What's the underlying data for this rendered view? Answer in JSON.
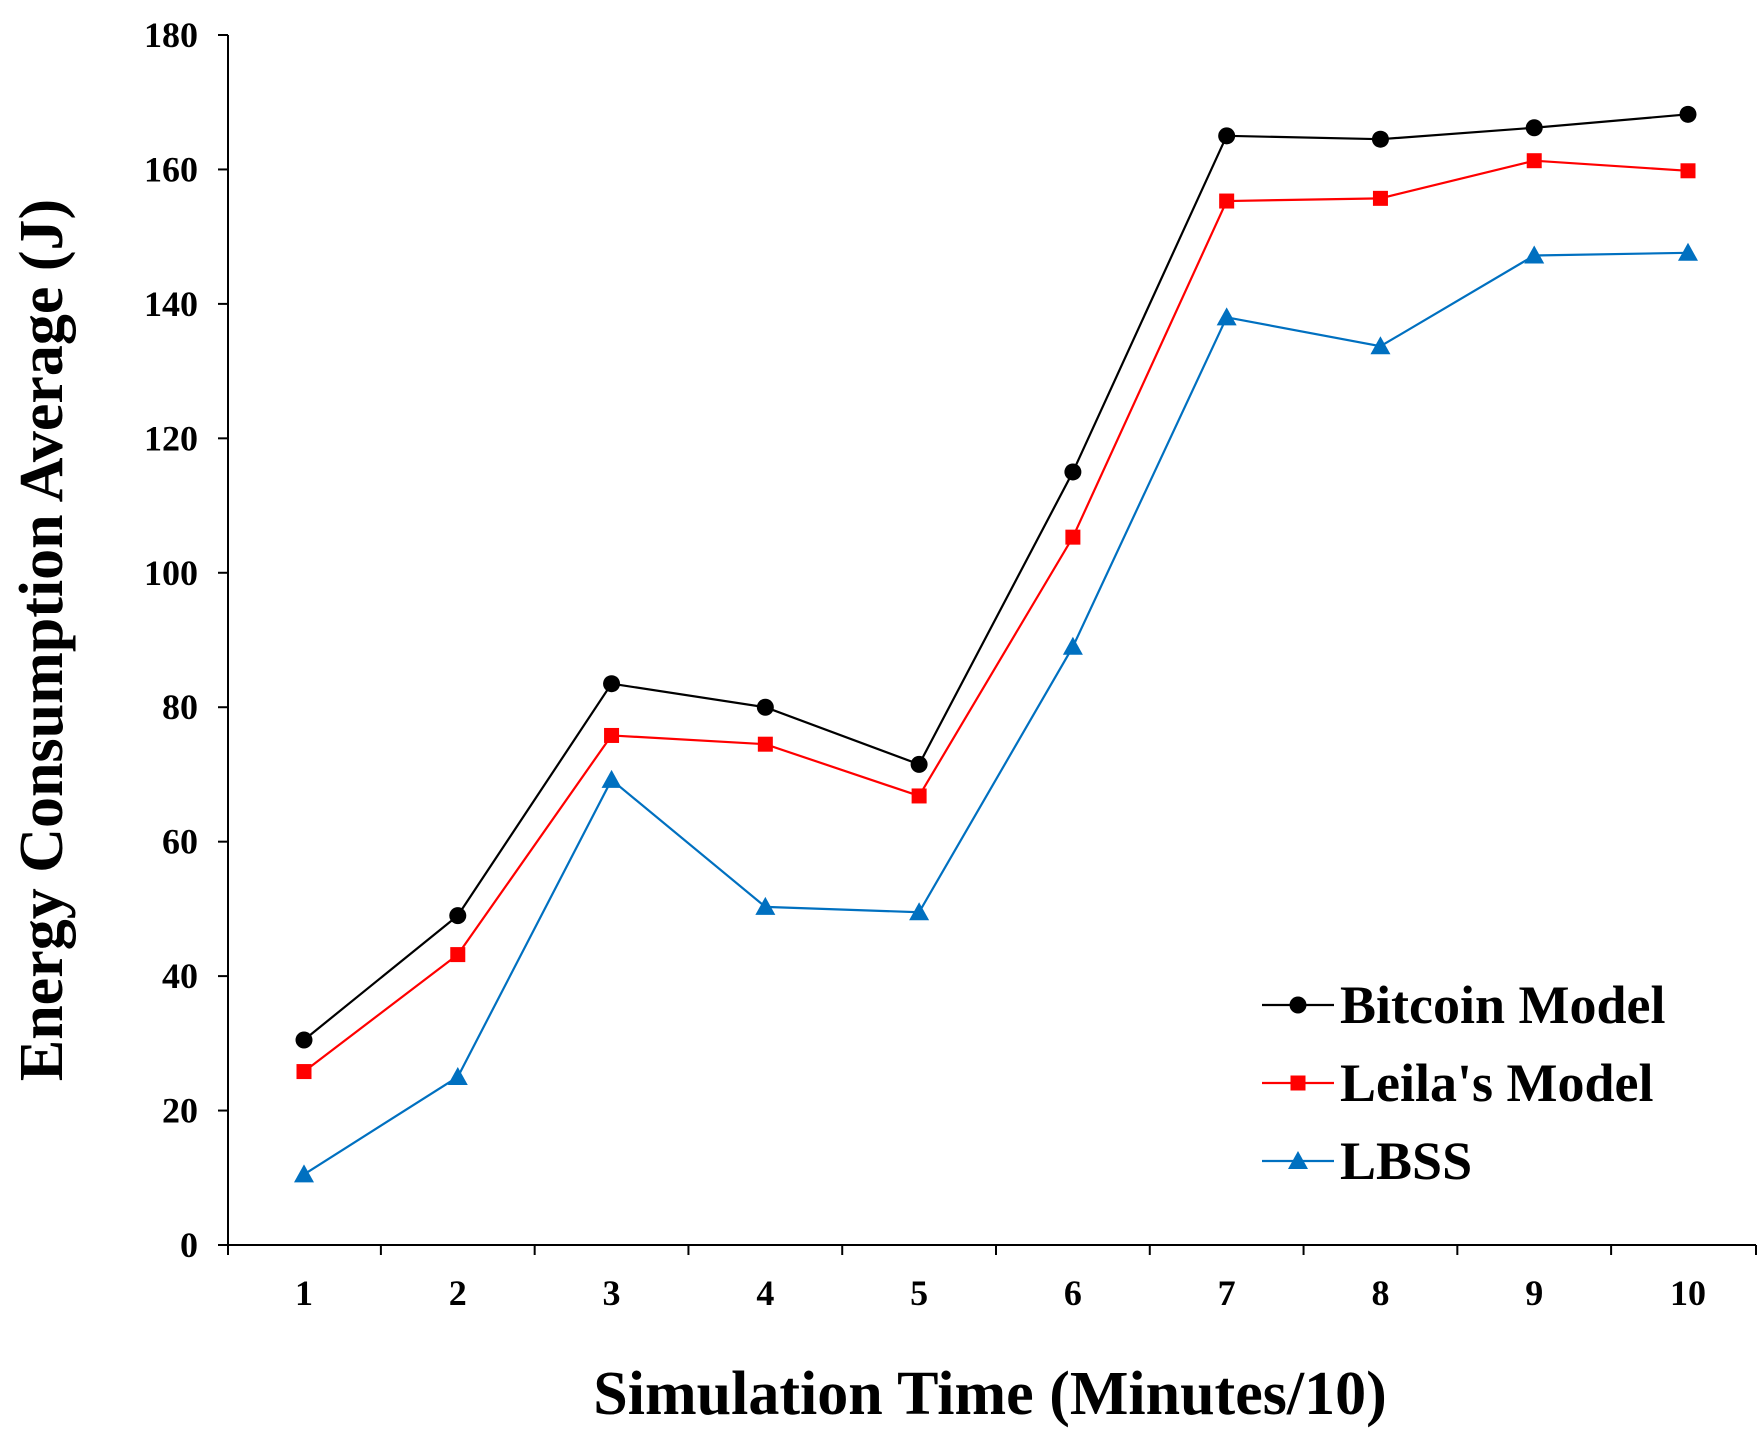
{
  "chart_data": {
    "type": "line",
    "title": "",
    "xlabel": "Simulation Time (Minutes/10)",
    "ylabel": "Energy Consumption Average (J)",
    "categories": [
      "1",
      "2",
      "3",
      "4",
      "5",
      "6",
      "7",
      "8",
      "9",
      "10"
    ],
    "ylim": [
      0,
      180
    ],
    "yticks": [
      0,
      20,
      40,
      60,
      80,
      100,
      120,
      140,
      160,
      180
    ],
    "grid": false,
    "legend_position": "bottom-right",
    "series": [
      {
        "name": "Bitcoin Model",
        "color": "#000000",
        "marker": "circle",
        "values": [
          30.5,
          49,
          83.5,
          80,
          71.5,
          115,
          165,
          164.5,
          166.2,
          168.2
        ]
      },
      {
        "name": "Leila's Model",
        "color": "#ff0000",
        "marker": "square",
        "values": [
          25.8,
          43.2,
          75.8,
          74.5,
          66.8,
          105.3,
          155.3,
          155.7,
          161.3,
          159.8
        ]
      },
      {
        "name": "LBSS",
        "color": "#0070c0",
        "marker": "triangle",
        "values": [
          10.5,
          25,
          69.2,
          50.3,
          49.5,
          89,
          138,
          133.7,
          147.2,
          147.6
        ]
      }
    ]
  }
}
